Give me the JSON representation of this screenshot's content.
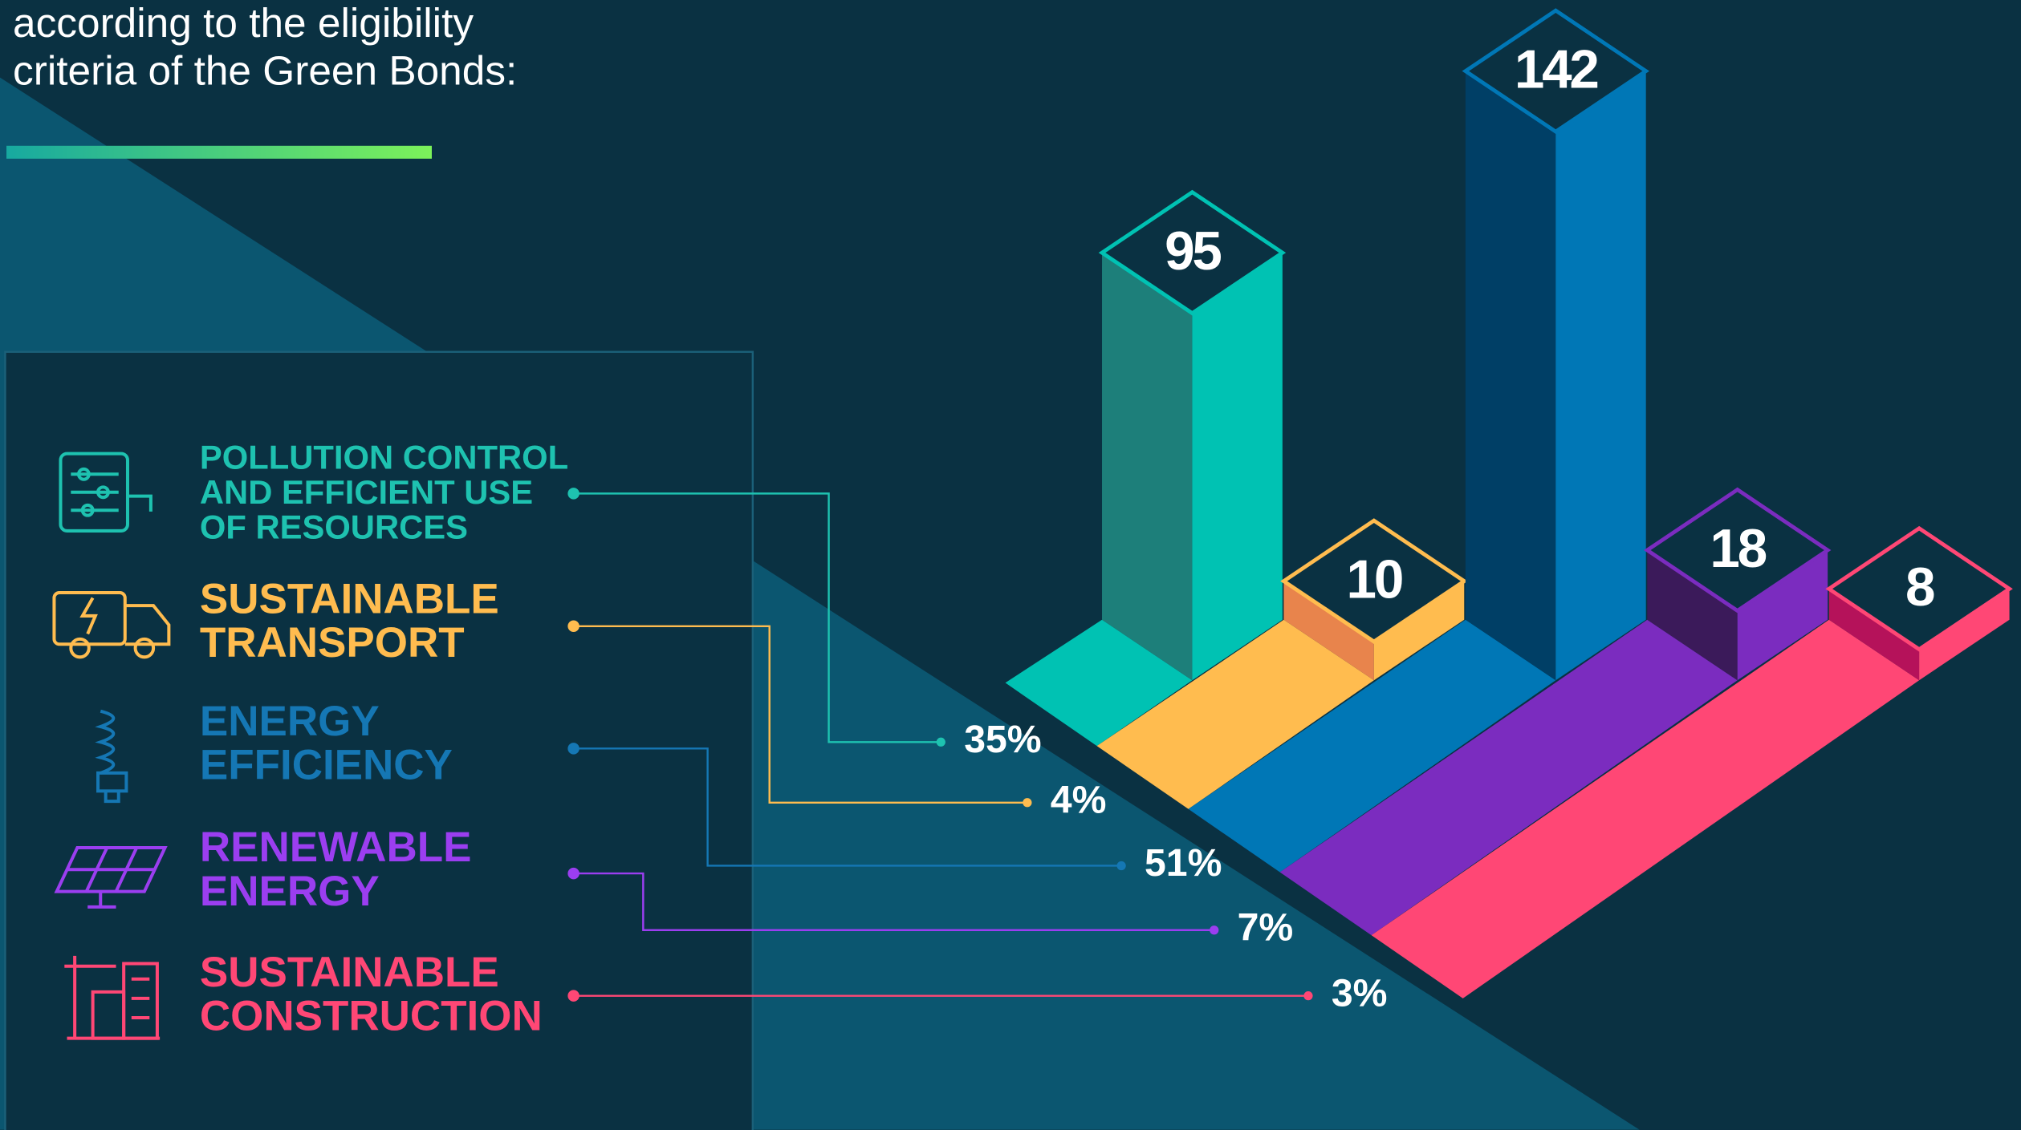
{
  "chart_data": {
    "type": "isometric_bar",
    "title_lines": [
      "according to the eligibility",
      "criteria of the Green Bonds:"
    ],
    "categories": [
      [
        "POLLUTION CONTROL",
        "AND EFFICIENT USE",
        "OF RESOURCES"
      ],
      [
        "SUSTAINABLE",
        "TRANSPORT"
      ],
      [
        "ENERGY",
        "EFFICIENCY"
      ],
      [
        "RENEWABLE",
        "ENERGY"
      ],
      [
        "SUSTAINABLE",
        "CONSTRUCTION"
      ]
    ],
    "values": [
      95,
      10,
      142,
      18,
      8
    ],
    "colors": [
      "#00c2b3",
      "#ffbc4f",
      "#0077b6",
      "#7b2cbf",
      "#ff4775"
    ],
    "side_colors": [
      "#1d7f7a",
      "#e8844c",
      "#003f66",
      "#3b1a5a",
      "#b5125a"
    ],
    "label_colors": [
      "#1ec2b0",
      "#ffbc4f",
      "#1577b4",
      "#9b3ef0",
      "#ff4775"
    ],
    "shares": {
      "values": [
        35,
        4,
        51,
        7,
        3
      ],
      "value_labels": [
        "35%",
        "4%",
        "51%",
        "7%",
        "3%"
      ]
    }
  }
}
